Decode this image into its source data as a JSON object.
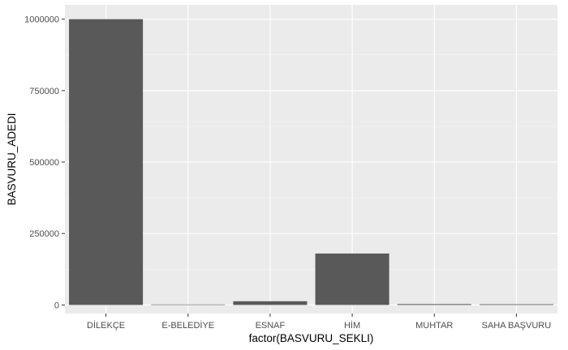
{
  "chart_data": {
    "type": "bar",
    "title": "",
    "xlabel": "factor(BASVURU_SEKLI)",
    "ylabel": "BASVURU_ADEDI",
    "categories": [
      "DİLEKÇE",
      "E-BELEDİYE",
      "ESNAF",
      "HİM",
      "MUHTAR",
      "SAHA BAŞVURU"
    ],
    "values": [
      1000000,
      800,
      13000,
      180000,
      3000,
      2500
    ],
    "ylim": [
      -30000,
      1050000
    ],
    "yticks": [
      0,
      250000,
      500000,
      750000,
      1000000
    ],
    "ytick_labels": [
      "0",
      "250000",
      "500000",
      "750000",
      "1000000"
    ],
    "grid": true,
    "legend": "none",
    "colors": {
      "bar": "#595959",
      "panel_background": "#ebebeb",
      "grid_major": "#ffffff",
      "grid_minor": "#f5f5f5",
      "tick_text": "#4d4d4d"
    }
  }
}
